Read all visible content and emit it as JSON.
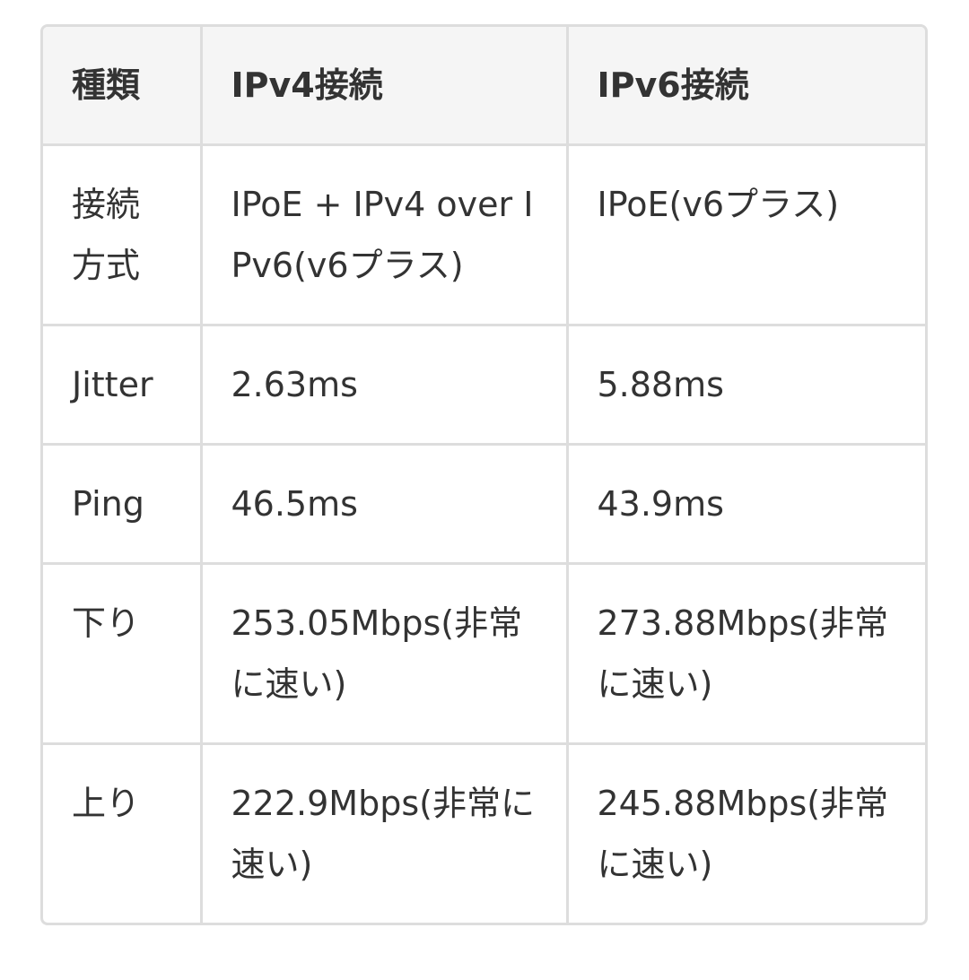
{
  "table": {
    "header": [
      "種類",
      "IPv4接続",
      "IPv6接続"
    ],
    "rows": [
      [
        "接続方式",
        "IPoE + IPv4 over IPv6(v6プラス)",
        "IPoE(v6プラス)"
      ],
      [
        "Jitter",
        "2.63ms",
        "5.88ms"
      ],
      [
        "Ping",
        "46.5ms",
        "43.9ms"
      ],
      [
        "下り",
        "253.05Mbps(非常に速い)",
        "273.88Mbps(非常に速い)"
      ],
      [
        "上り",
        "222.9Mbps(非常に速い)",
        "245.88Mbps(非常に速い)"
      ]
    ]
  }
}
